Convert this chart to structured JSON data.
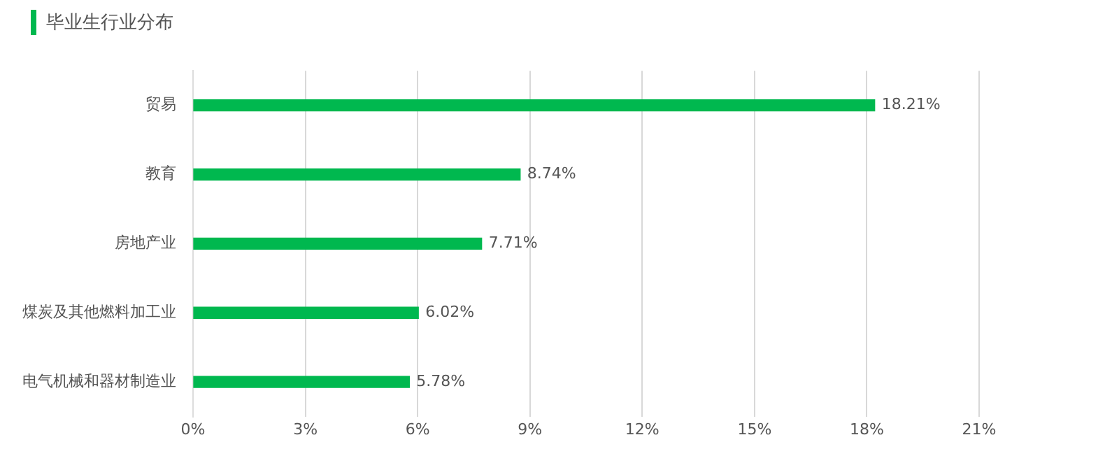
{
  "chart_data": {
    "type": "bar",
    "orientation": "horizontal",
    "title": "毕业生行业分布",
    "categories": [
      "贸易",
      "教育",
      "房地产业",
      "煤炭及其他燃料加工业",
      "电气机械和器材制造业"
    ],
    "values": [
      18.21,
      8.74,
      7.71,
      6.02,
      5.78
    ],
    "color": "#00b84f",
    "value_labels": [
      "18.21%",
      "8.74%",
      "7.71%",
      "6.02%",
      "5.78%"
    ],
    "xlim": [
      0,
      21
    ],
    "xticks": [
      {
        "value": 0,
        "label": "0%"
      },
      {
        "value": 3,
        "label": "3%"
      },
      {
        "value": 6,
        "label": "6%"
      },
      {
        "value": 9,
        "label": "9%"
      },
      {
        "value": 12,
        "label": "12%"
      },
      {
        "value": 15,
        "label": "15%"
      },
      {
        "value": 18,
        "label": "18%"
      },
      {
        "value": 21,
        "label": "21%"
      }
    ],
    "grid": "x",
    "legend": false
  }
}
